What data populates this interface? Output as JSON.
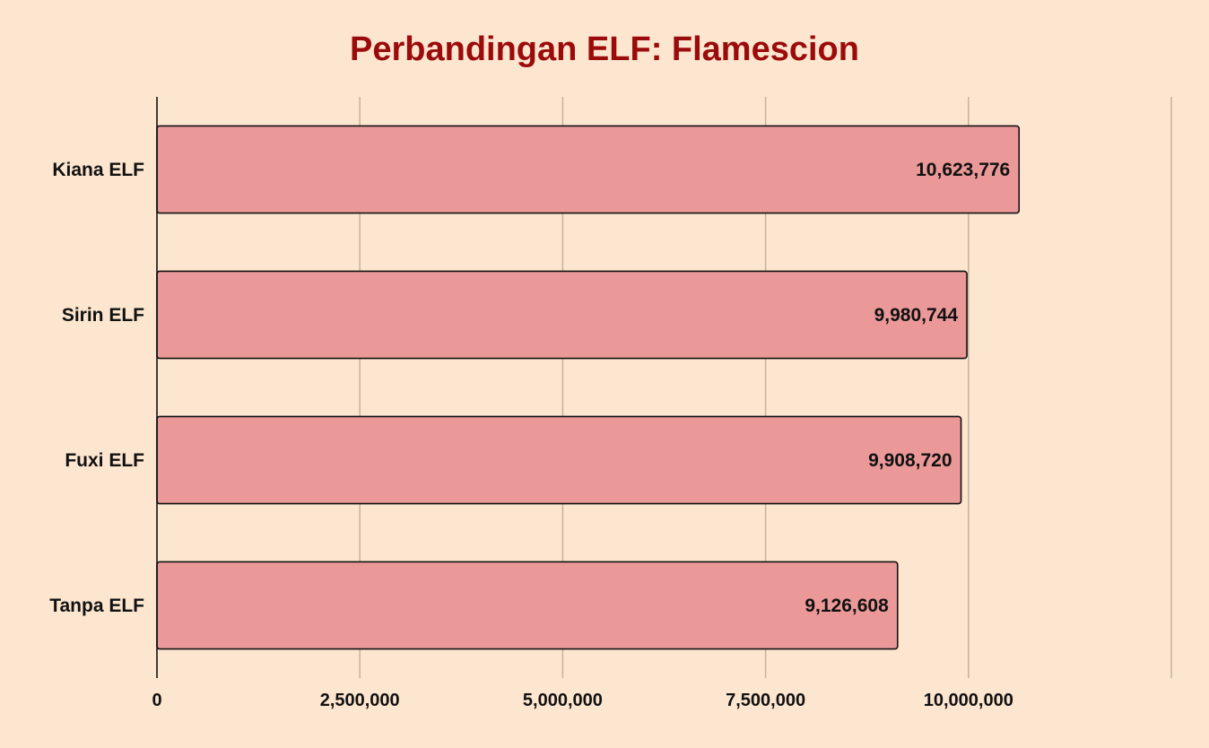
{
  "chart_data": {
    "type": "bar",
    "orientation": "horizontal",
    "title": "Perbandingan ELF: Flamescion",
    "categories": [
      "Kiana ELF",
      "Sirin ELF",
      "Fuxi ELF",
      "Tanpa ELF"
    ],
    "values": [
      10623776,
      9980744,
      9908720,
      9126608
    ],
    "value_labels": [
      "10,623,776",
      "9,980,744",
      "9,908,720",
      "9,126,608"
    ],
    "xlim": [
      0,
      12500000
    ],
    "xticks": [
      0,
      2500000,
      5000000,
      7500000,
      10000000
    ],
    "xtick_labels": [
      "0",
      "2,500,000",
      "5,000,000",
      "7,500,000",
      "10,000,000"
    ],
    "xlabel": "",
    "ylabel": "",
    "grid": "vertical",
    "colors": {
      "bar": "#eb9898",
      "bar_edge": "#111111",
      "grid": "#c4b29d",
      "axis": "#111111",
      "title": "#9b0b0b",
      "background": "#fde6cf"
    }
  }
}
